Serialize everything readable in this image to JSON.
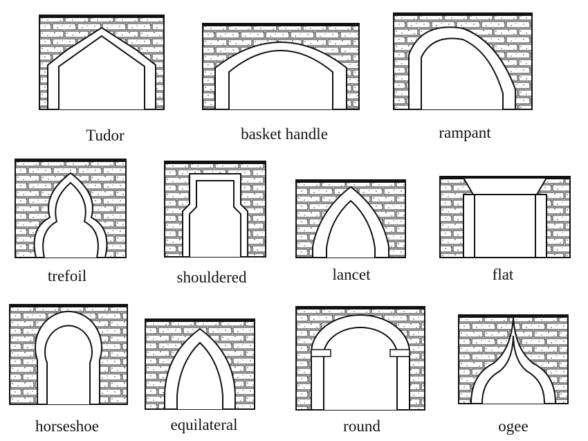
{
  "arches": [
    {
      "id": "tudor",
      "label": "Tudor"
    },
    {
      "id": "basket-handle",
      "label": "basket handle"
    },
    {
      "id": "rampant",
      "label": "rampant"
    },
    {
      "id": "trefoil",
      "label": "trefoil"
    },
    {
      "id": "shouldered",
      "label": "shouldered"
    },
    {
      "id": "lancet",
      "label": "lancet"
    },
    {
      "id": "flat",
      "label": "flat"
    },
    {
      "id": "horseshoe",
      "label": "horseshoe"
    },
    {
      "id": "equilateral",
      "label": "equilateral"
    },
    {
      "id": "round",
      "label": "round"
    },
    {
      "id": "ogee",
      "label": "ogee"
    }
  ],
  "colors": {
    "ink": "#111111",
    "stipple": "#3a3a3a",
    "paper": "#ffffff"
  }
}
